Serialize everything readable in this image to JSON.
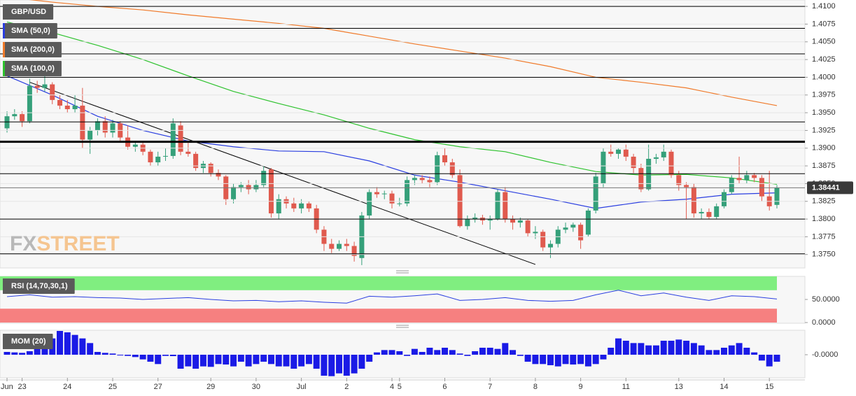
{
  "chart_data": [
    {
      "type": "candlestick",
      "title": "GBP/USD",
      "up_color": "#35a07a",
      "down_color": "#e05a4e",
      "xlim": [
        -0.93,
        105.71
      ],
      "ylim": [
        1.3731,
        1.4109
      ],
      "yticks": [
        {
          "value": 1.41,
          "label": "1.4100"
        },
        {
          "value": 1.4075,
          "label": "1.4075"
        },
        {
          "value": 1.405,
          "label": "1.4050"
        },
        {
          "value": 1.4025,
          "label": "1.4025"
        },
        {
          "value": 1.4,
          "label": "1.4000"
        },
        {
          "value": 1.3975,
          "label": "1.3975"
        },
        {
          "value": 1.395,
          "label": "1.3950"
        },
        {
          "value": 1.3925,
          "label": "1.3925"
        },
        {
          "value": 1.39,
          "label": "1.3900"
        },
        {
          "value": 1.3875,
          "label": "1.3875"
        },
        {
          "value": 1.385,
          "label": "1.3850"
        },
        {
          "value": 1.3825,
          "label": "1.3825"
        },
        {
          "value": 1.38,
          "label": "1.3800"
        },
        {
          "value": 1.3775,
          "label": "1.3775"
        },
        {
          "value": 1.375,
          "label": "1.3750"
        }
      ],
      "grid": true,
      "xticks": [
        {
          "value": 0,
          "label": "Jun"
        },
        {
          "value": 2,
          "label": "23"
        },
        {
          "value": 8,
          "label": "24"
        },
        {
          "value": 14,
          "label": "25"
        },
        {
          "value": 20,
          "label": "27"
        },
        {
          "value": 27,
          "label": "29"
        },
        {
          "value": 33,
          "label": "30"
        },
        {
          "value": 39,
          "label": "Jul"
        },
        {
          "value": 45,
          "label": "2"
        },
        {
          "value": 51,
          "label": "4"
        },
        {
          "value": 52,
          "label": "5"
        },
        {
          "value": 58,
          "label": "6"
        },
        {
          "value": 64,
          "label": "7"
        },
        {
          "value": 70,
          "label": "8"
        },
        {
          "value": 76,
          "label": "9"
        },
        {
          "value": 82,
          "label": "11"
        },
        {
          "value": 89,
          "label": "13"
        },
        {
          "value": 95,
          "label": "14"
        },
        {
          "value": 101,
          "label": "15"
        }
      ],
      "candles": [
        [
          1.3928,
          1.3952,
          1.3922,
          1.3945
        ],
        [
          1.3945,
          1.3955,
          1.394,
          1.3948
        ],
        [
          1.3948,
          1.3952,
          1.393,
          1.3938
        ],
        [
          1.3938,
          1.3998,
          1.3935,
          1.3988
        ],
        [
          1.3988,
          1.3995,
          1.3978,
          1.3985
        ],
        [
          1.3985,
          1.4007,
          1.398,
          1.399
        ],
        [
          1.399,
          1.3993,
          1.3962,
          1.3968
        ],
        [
          1.3968,
          1.3975,
          1.3955,
          1.396
        ],
        [
          1.396,
          1.3968,
          1.395,
          1.3955
        ],
        [
          1.3955,
          1.3975,
          1.395,
          1.396
        ],
        [
          1.396,
          1.3985,
          1.39,
          1.3912
        ],
        [
          1.3912,
          1.393,
          1.3892,
          1.3925
        ],
        [
          1.3925,
          1.3942,
          1.3918,
          1.3938
        ],
        [
          1.3938,
          1.3945,
          1.3915,
          1.3922
        ],
        [
          1.3922,
          1.394,
          1.3915,
          1.3935
        ],
        [
          1.3935,
          1.3938,
          1.391,
          1.3915
        ],
        [
          1.3915,
          1.3932,
          1.3898,
          1.3902
        ],
        [
          1.3902,
          1.391,
          1.3895,
          1.3905
        ],
        [
          1.3905,
          1.391,
          1.389,
          1.3895
        ],
        [
          1.3895,
          1.3898,
          1.3875,
          1.388
        ],
        [
          1.388,
          1.3895,
          1.3875,
          1.3888
        ],
        [
          1.3888,
          1.39,
          1.3882,
          1.3889
        ],
        [
          1.3889,
          1.3942,
          1.3885,
          1.3935
        ],
        [
          1.3932,
          1.3938,
          1.389,
          1.3895
        ],
        [
          1.3895,
          1.391,
          1.3888,
          1.3892
        ],
        [
          1.3892,
          1.3895,
          1.3868,
          1.3872
        ],
        [
          1.3872,
          1.3882,
          1.3865,
          1.3878
        ],
        [
          1.3878,
          1.388,
          1.386,
          1.3865
        ],
        [
          1.3865,
          1.387,
          1.3855,
          1.386
        ],
        [
          1.386,
          1.3862,
          1.382,
          1.3828
        ],
        [
          1.3828,
          1.385,
          1.3822,
          1.3845
        ],
        [
          1.3845,
          1.3852,
          1.3838,
          1.3848
        ],
        [
          1.3848,
          1.3855,
          1.3835,
          1.3842
        ],
        [
          1.3842,
          1.3855,
          1.3838,
          1.3848
        ],
        [
          1.3848,
          1.3875,
          1.3845,
          1.3868
        ],
        [
          1.387,
          1.3872,
          1.3802,
          1.3808
        ],
        [
          1.3808,
          1.3835,
          1.38,
          1.3828
        ],
        [
          1.3828,
          1.3832,
          1.3815,
          1.3822
        ],
        [
          1.3822,
          1.383,
          1.381,
          1.3815
        ],
        [
          1.3815,
          1.3828,
          1.3808,
          1.3822
        ],
        [
          1.3822,
          1.3825,
          1.381,
          1.3815
        ],
        [
          1.3815,
          1.382,
          1.378,
          1.3785
        ],
        [
          1.3785,
          1.379,
          1.3755,
          1.3765
        ],
        [
          1.3765,
          1.3772,
          1.3752,
          1.3758
        ],
        [
          1.3758,
          1.377,
          1.3755,
          1.3765
        ],
        [
          1.3765,
          1.3772,
          1.3755,
          1.3762
        ],
        [
          1.3762,
          1.3768,
          1.374,
          1.3748
        ],
        [
          1.3745,
          1.381,
          1.3735,
          1.3805
        ],
        [
          1.3805,
          1.3842,
          1.38,
          1.3838
        ],
        [
          1.3838,
          1.3845,
          1.383,
          1.3835
        ],
        [
          1.3835,
          1.384,
          1.3828,
          1.3836
        ],
        [
          1.3836,
          1.384,
          1.3815,
          1.3822
        ],
        [
          1.3822,
          1.383,
          1.3818,
          1.3822
        ],
        [
          1.3822,
          1.386,
          1.3818,
          1.3855
        ],
        [
          1.3855,
          1.3862,
          1.3848,
          1.3858
        ],
        [
          1.3858,
          1.3862,
          1.385,
          1.3855
        ],
        [
          1.3855,
          1.386,
          1.3845,
          1.3852
        ],
        [
          1.3852,
          1.3895,
          1.3848,
          1.389
        ],
        [
          1.389,
          1.39,
          1.3875,
          1.388
        ],
        [
          1.388,
          1.3885,
          1.3858,
          1.3862
        ],
        [
          1.3862,
          1.387,
          1.3788,
          1.379
        ],
        [
          1.379,
          1.3805,
          1.3785,
          1.38
        ],
        [
          1.38,
          1.3808,
          1.3795,
          1.3802
        ],
        [
          1.3802,
          1.3806,
          1.3792,
          1.3798
        ],
        [
          1.3798,
          1.3805,
          1.3785,
          1.38
        ],
        [
          1.38,
          1.3842,
          1.3798,
          1.3838
        ],
        [
          1.3838,
          1.3845,
          1.3795,
          1.38
        ],
        [
          1.38,
          1.3805,
          1.3785,
          1.3795
        ],
        [
          1.3795,
          1.3802,
          1.3788,
          1.3798
        ],
        [
          1.3798,
          1.38,
          1.3775,
          1.378
        ],
        [
          1.378,
          1.379,
          1.3772,
          1.3782
        ],
        [
          1.3782,
          1.3785,
          1.3755,
          1.376
        ],
        [
          1.376,
          1.377,
          1.3745,
          1.3765
        ],
        [
          1.3765,
          1.379,
          1.376,
          1.3785
        ],
        [
          1.3785,
          1.3795,
          1.378,
          1.3788
        ],
        [
          1.3788,
          1.3795,
          1.3782,
          1.3792
        ],
        [
          1.3792,
          1.3795,
          1.3758,
          1.377
        ],
        [
          1.3778,
          1.3815,
          1.3775,
          1.3812
        ],
        [
          1.3812,
          1.3865,
          1.3808,
          1.386
        ],
        [
          1.385,
          1.39,
          1.3845,
          1.3895
        ],
        [
          1.3895,
          1.3905,
          1.3888,
          1.3892
        ],
        [
          1.3892,
          1.39,
          1.3885,
          1.3898
        ],
        [
          1.3898,
          1.3905,
          1.3882,
          1.3888
        ],
        [
          1.3888,
          1.3892,
          1.3865,
          1.3872
        ],
        [
          1.3872,
          1.3878,
          1.3838,
          1.3842
        ],
        [
          1.3842,
          1.3905,
          1.384,
          1.3885
        ],
        [
          1.3885,
          1.3892,
          1.3878,
          1.3887
        ],
        [
          1.3887,
          1.3905,
          1.3882,
          1.3895
        ],
        [
          1.3895,
          1.3898,
          1.3858,
          1.3862
        ],
        [
          1.3862,
          1.3868,
          1.384,
          1.3848
        ],
        [
          1.3848,
          1.3852,
          1.38,
          1.3845
        ],
        [
          1.3845,
          1.385,
          1.3802,
          1.3808
        ],
        [
          1.3808,
          1.3815,
          1.38,
          1.381
        ],
        [
          1.381,
          1.3815,
          1.38,
          1.3803
        ],
        [
          1.3803,
          1.3822,
          1.38,
          1.3818
        ],
        [
          1.3818,
          1.3842,
          1.3815,
          1.3838
        ],
        [
          1.3838,
          1.3862,
          1.3835,
          1.3858
        ],
        [
          1.3858,
          1.3888,
          1.385,
          1.3855
        ],
        [
          1.3855,
          1.3868,
          1.385,
          1.3862
        ],
        [
          1.3862,
          1.3865,
          1.3852,
          1.3858
        ],
        [
          1.3858,
          1.3862,
          1.3825,
          1.3832
        ],
        [
          1.3832,
          1.3868,
          1.3812,
          1.3818
        ],
        [
          1.382,
          1.3848,
          1.3815,
          1.3844
        ]
      ],
      "series": [
        {
          "name": "SMA (50,0)",
          "color": "#2a3ee0",
          "x": [
            0,
            6,
            12,
            18,
            24,
            30,
            36,
            42,
            48,
            54,
            60,
            66,
            72,
            78,
            84,
            90,
            96,
            102
          ],
          "values": [
            1.4002,
            1.3975,
            1.3945,
            1.3925,
            1.391,
            1.3902,
            1.3896,
            1.3895,
            1.3882,
            1.3862,
            1.3852,
            1.384,
            1.3828,
            1.3815,
            1.3824,
            1.3828,
            1.3835,
            1.3837
          ]
        },
        {
          "name": "SMA (200,0)",
          "color": "#f07a2a",
          "x": [
            0,
            6,
            12,
            18,
            24,
            30,
            36,
            42,
            48,
            54,
            60,
            66,
            72,
            78,
            84,
            90,
            96,
            102
          ],
          "values": [
            1.4113,
            1.4106,
            1.41,
            1.4095,
            1.4088,
            1.4082,
            1.4076,
            1.4069,
            1.4058,
            1.4047,
            1.4037,
            1.4027,
            1.4015,
            1.4,
            1.3993,
            1.3985,
            1.3972,
            1.396
          ]
        },
        {
          "name": "SMA (100,0)",
          "color": "#2ec22e",
          "x": [
            0,
            6,
            12,
            18,
            24,
            30,
            36,
            42,
            48,
            54,
            60,
            66,
            72,
            78,
            84,
            90,
            96,
            102
          ],
          "values": [
            1.4078,
            1.4063,
            1.4045,
            1.4025,
            1.4002,
            1.398,
            1.3963,
            1.3947,
            1.3928,
            1.3912,
            1.3902,
            1.3895,
            1.388,
            1.3867,
            1.3862,
            1.3863,
            1.3858,
            1.3849
          ]
        }
      ],
      "levels": [
        1.41,
        1.4069,
        1.4033,
        1.4,
        1.3937,
        1.3864,
        1.38,
        1.3751
      ],
      "key_level": 1.3909,
      "last_price": 1.38441,
      "trendline": {
        "x": [
          3,
          70
        ],
        "values": [
          1.3993,
          1.3736
        ]
      },
      "watermark": [
        "FX",
        "STREET"
      ]
    },
    {
      "type": "line",
      "title": "RSI (14,70,30,1)",
      "color": "#2a3ee0",
      "xlim": [
        -0.93,
        105.71
      ],
      "ylim": [
        -1.5,
        100
      ],
      "yticks": [
        {
          "value": 50,
          "label": "50.0000"
        },
        {
          "value": 0,
          "label": "0.0000"
        }
      ],
      "bands": [
        {
          "range": [
            70,
            100
          ],
          "color": "#80ee80"
        },
        {
          "range": [
            0,
            30
          ],
          "color": "#f68080"
        }
      ],
      "x": [
        0,
        3,
        6,
        9,
        12,
        15,
        18,
        21,
        24,
        27,
        30,
        33,
        36,
        39,
        42,
        45,
        48,
        51,
        54,
        57,
        60,
        63,
        66,
        69,
        72,
        75,
        78,
        81,
        84,
        87,
        90,
        93,
        96,
        99,
        102
      ],
      "values": [
        56,
        60,
        55,
        56,
        54,
        53,
        50,
        52,
        54,
        50,
        47,
        48,
        45,
        47,
        44,
        42,
        57,
        55,
        58,
        62,
        48,
        50,
        54,
        48,
        46,
        48,
        60,
        70,
        58,
        64,
        55,
        48,
        58,
        56,
        51
      ]
    },
    {
      "type": "bar",
      "title": "MOM (20)",
      "color": "#1a1ae6",
      "xlim": [
        -0.93,
        105.71
      ],
      "ylim": [
        -0.0099,
        0.0105
      ],
      "yticks": [
        {
          "value": 0,
          "label": "-0.0000"
        }
      ],
      "values": [
        0.0012,
        0.001,
        0.0008,
        0.0015,
        0.003,
        0.0055,
        0.007,
        0.0102,
        0.0096,
        0.0085,
        0.007,
        0.005,
        0.0012,
        0.0008,
        0.0005,
        -0.0003,
        -0.0005,
        -0.001,
        -0.002,
        -0.003,
        -0.004,
        -0.0005,
        -0.0006,
        -0.006,
        -0.005,
        -0.006,
        -0.005,
        -0.0052,
        -0.004,
        -0.0042,
        -0.005,
        -0.003,
        -0.005,
        -0.004,
        -0.003,
        -0.004,
        -0.005,
        -0.005,
        -0.006,
        -0.005,
        -0.004,
        -0.006,
        -0.009,
        -0.0092,
        -0.008,
        -0.009,
        -0.008,
        -0.006,
        -0.003,
        0.001,
        0.002,
        0.002,
        0.0015,
        -0.0005,
        0.0025,
        0.0012,
        0.003,
        0.002,
        0.003,
        0.002,
        0.0005,
        -0.0005,
        0.0015,
        0.003,
        0.003,
        0.0025,
        0.005,
        0.002,
        -0.0005,
        -0.003,
        -0.004,
        -0.004,
        -0.0045,
        -0.005,
        -0.004,
        -0.0042,
        -0.004,
        -0.005,
        -0.004,
        -0.002,
        0.003,
        0.007,
        0.006,
        0.005,
        0.005,
        0.004,
        0.004,
        0.006,
        0.006,
        0.0065,
        0.006,
        0.005,
        0.004,
        0.002,
        0.002,
        0.003,
        0.004,
        0.005,
        0.003,
        0.001,
        -0.0025,
        -0.005,
        -0.003
      ]
    }
  ]
}
